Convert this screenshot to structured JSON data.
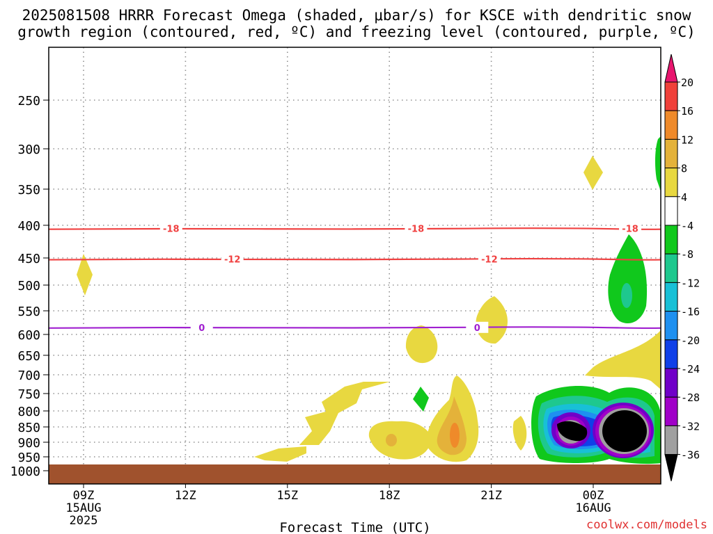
{
  "chart_data": {
    "type": "heatmap",
    "title_line1": "2025081508 HRRR Forecast Omega (shaded, μbar/s) for KSCE with dendritic snow",
    "title_line2": "growth region (contoured, red, ºC) and freezing level (contoured, purple, ºC)",
    "xlabel": "Forecast Time (UTC)",
    "credit": "coolwx.com/models",
    "x_range_hours": [
      -0.5,
      12.25
    ],
    "y_range_hPa": [
      175,
      1035
    ],
    "y_ticks": [
      "250",
      "300",
      "350",
      "400",
      "450",
      "500",
      "550",
      "600",
      "650",
      "700",
      "750",
      "800",
      "850",
      "900",
      "950",
      "1000"
    ],
    "x_ticks": [
      {
        "hour": 0,
        "lines": [
          "09Z",
          "15AUG",
          "2025"
        ]
      },
      {
        "hour": 3,
        "lines": [
          "12Z"
        ]
      },
      {
        "hour": 6,
        "lines": [
          "15Z"
        ]
      },
      {
        "hour": 9,
        "lines": [
          "18Z"
        ]
      },
      {
        "hour": 12,
        "lines": [
          "21Z"
        ]
      },
      {
        "hour": 15,
        "lines": [
          "00Z",
          "16AUG"
        ]
      }
    ],
    "hour_step_px": 48.8,
    "colorbar": {
      "labels": [
        "20",
        "16",
        "12",
        "8",
        "4",
        "-4",
        "-8",
        "-12",
        "-16",
        "-20",
        "-24",
        "-28",
        "-32",
        "-36"
      ],
      "colors": [
        "#e8156e",
        "#f0403a",
        "#ef8a2a",
        "#e4b23a",
        "#e8d840",
        "#ffffff",
        "#10c81c",
        "#1ec88e",
        "#18c0d6",
        "#1e90f0",
        "#1040e8",
        "#7000c8",
        "#a000c8",
        "#a0a0a0",
        "#000000"
      ]
    },
    "ground_color": "#a0522d",
    "isotherms": [
      {
        "label": "-18",
        "color": "#f04040",
        "pressure": 405,
        "label_positions": [
          0.2,
          0.6,
          0.95
        ]
      },
      {
        "label": "-12",
        "color": "#f04040",
        "pressure": 452,
        "label_positions": [
          0.3,
          0.72
        ]
      },
      {
        "label": "0",
        "color": "#a020d0",
        "pressure": 585,
        "label_positions": [
          0.25,
          0.7
        ]
      }
    ],
    "omega_regions": [
      {
        "level": "4 to 8",
        "color": "#e8d840",
        "approx_center_hour": 0.1,
        "approx_center_hPa": 490
      },
      {
        "level": "4 to 8",
        "color": "#e8d840",
        "approx_center_hour": 14.9,
        "approx_center_hPa": 330
      },
      {
        "level": "4 to 8",
        "color": "#e8d840",
        "approx_center_hour": 12.0,
        "approx_center_hPa": 565
      },
      {
        "level": "4 to 8",
        "color": "#e8d840",
        "approx_center_hour": 9.8,
        "approx_center_hPa": 620
      },
      {
        "level": "4 to 8",
        "color": "#e8d840",
        "approx_center_hour": 7.0,
        "approx_center_hPa": 830
      },
      {
        "level": "4 to 8",
        "color": "#e8d840",
        "approx_center_hour": 9.3,
        "approx_center_hPa": 880
      },
      {
        "level": "4 to 8",
        "color": "#e8d840",
        "approx_center_hour": 11.2,
        "approx_center_hPa": 860
      },
      {
        "level": "4 to 8",
        "color": "#e8d840",
        "approx_center_hour": 5.9,
        "approx_center_hPa": 945
      },
      {
        "level": "4 to 8",
        "color": "#e8d840",
        "approx_center_hour": 13.0,
        "approx_center_hPa": 870
      },
      {
        "level": "4 to 8",
        "color": "#e8d840",
        "approx_center_hour": 16.7,
        "approx_center_hPa": 700
      },
      {
        "level": "12 to 16",
        "color": "#ef8a2a",
        "approx_center_hour": 11.0,
        "approx_center_hPa": 870
      },
      {
        "level": "-4 to -8",
        "color": "#10c81c",
        "approx_center_hour": 10.0,
        "approx_center_hPa": 770
      },
      {
        "level": "-4 to -8",
        "color": "#10c81c",
        "approx_center_hour": 16.0,
        "approx_center_hPa": 500
      },
      {
        "level": "-8 to -12",
        "color": "#1ec88e",
        "approx_center_hour": 16.0,
        "approx_center_hPa": 515
      },
      {
        "level": "below -36",
        "color": "#000000",
        "approx_center_hour": 14.1,
        "approx_center_hPa": 855
      },
      {
        "level": "below -36",
        "color": "#000000",
        "approx_center_hour": 15.9,
        "approx_center_hPa": 860
      }
    ]
  }
}
